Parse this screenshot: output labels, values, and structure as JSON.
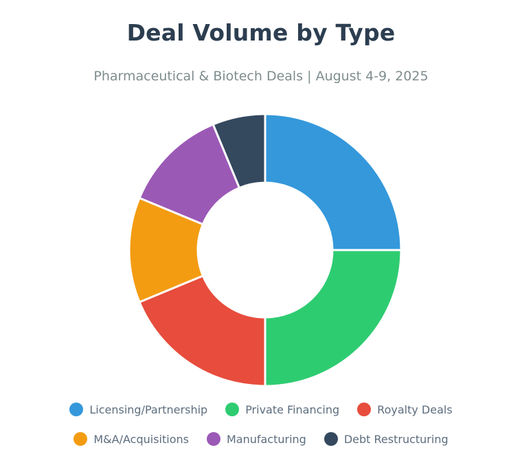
{
  "chart_data": {
    "type": "pie",
    "title": "Deal Volume by Type",
    "subtitle": "Pharmaceutical & Biotech Deals | August 4-9, 2025",
    "series": [
      {
        "name": "Licensing/Partnership",
        "value": 8,
        "color": "#3498db"
      },
      {
        "name": "Private Financing",
        "value": 8,
        "color": "#2ecc71"
      },
      {
        "name": "Royalty Deals",
        "value": 6,
        "color": "#e74c3c"
      },
      {
        "name": "M&A/Acquisitions",
        "value": 4,
        "color": "#f39c12"
      },
      {
        "name": "Manufacturing",
        "value": 4,
        "color": "#9b59b6"
      },
      {
        "name": "Debt Restructuring",
        "value": 2,
        "color": "#34495e"
      }
    ],
    "donut": true,
    "legend_position": "bottom"
  }
}
